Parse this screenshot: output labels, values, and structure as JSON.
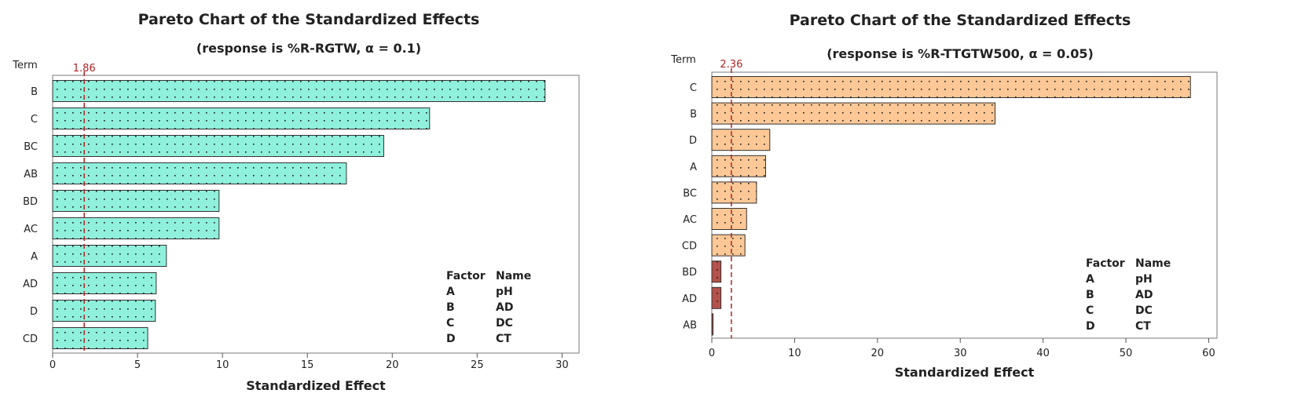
{
  "chart_data": [
    {
      "type": "bar",
      "orientation": "horizontal",
      "title": "Pareto Chart of the Standardized Effects",
      "subtitle": "(response is %R-RGTW, α = 0.1)",
      "term_header": "Term",
      "xlabel": "Standardized Effect",
      "xlim": [
        0,
        31
      ],
      "xticks": [
        0,
        5,
        10,
        15,
        20,
        25,
        30
      ],
      "reference_line": {
        "value": 1.86,
        "label": "1.86",
        "color": "#b22222"
      },
      "bar_color": "#8ff0dc",
      "significant_only": true,
      "categories": [
        "B",
        "C",
        "BC",
        "AB",
        "BD",
        "AC",
        "A",
        "AD",
        "D",
        "CD"
      ],
      "values": [
        29.0,
        22.2,
        19.5,
        17.3,
        9.8,
        9.8,
        6.7,
        6.1,
        6.05,
        5.6
      ],
      "legend": {
        "header": [
          "Factor",
          "Name"
        ],
        "rows": [
          [
            "A",
            "pH"
          ],
          [
            "B",
            "AD"
          ],
          [
            "C",
            "DC"
          ],
          [
            "D",
            "CT"
          ]
        ]
      }
    },
    {
      "type": "bar",
      "orientation": "horizontal",
      "title": "Pareto Chart of the Standardized Effects",
      "subtitle": "(response is %R-TTGTW500, α = 0.05)",
      "term_header": "Term",
      "xlabel": "Standardized Effect",
      "xlim": [
        0,
        61
      ],
      "xticks": [
        0,
        10,
        20,
        30,
        40,
        50,
        60
      ],
      "reference_line": {
        "value": 2.36,
        "label": "2.36",
        "color": "#b22222"
      },
      "bar_color": "#fdc896",
      "nonsignificant_color": "#b5504a",
      "categories": [
        "C",
        "B",
        "D",
        "A",
        "BC",
        "AC",
        "CD",
        "BD",
        "AD",
        "AB"
      ],
      "values": [
        57.8,
        34.2,
        7.0,
        6.5,
        5.4,
        4.2,
        4.0,
        1.1,
        1.1,
        0.15
      ],
      "legend": {
        "header": [
          "Factor",
          "Name"
        ],
        "rows": [
          [
            "A",
            "pH"
          ],
          [
            "B",
            "AD"
          ],
          [
            "C",
            "DC"
          ],
          [
            "D",
            "CT"
          ]
        ]
      }
    }
  ]
}
